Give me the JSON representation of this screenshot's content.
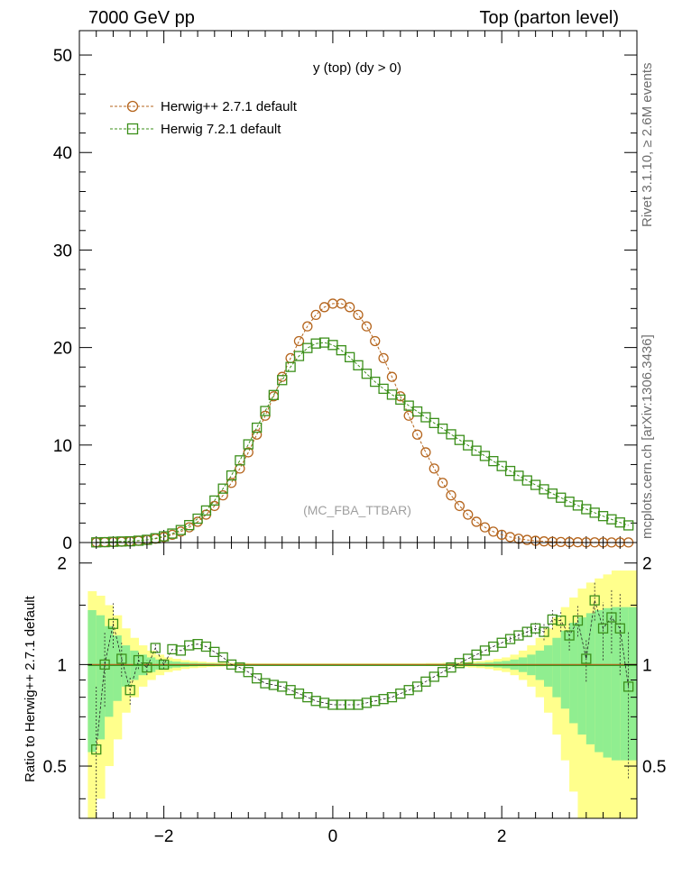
{
  "header": {
    "left": "7000 GeV pp",
    "right": "Top (parton level)"
  },
  "side_labels": {
    "rivet": "Rivet 3.1.10, ≥ 2.6M events",
    "mcplots": "mcplots.cern.ch [arXiv:1306.3436]"
  },
  "colors": {
    "herwigpp": "#b5651d",
    "herwig7": "#3b8f1a",
    "band_inner": "#90ee90",
    "band_outer": "#ffff8c"
  },
  "chart_data": [
    {
      "type": "line",
      "title": "y (top) (dy > 0)",
      "watermark": "(MC_FBA_TTBAR)",
      "xlim": [
        -3.0,
        3.6
      ],
      "ylim": [
        0,
        52.5
      ],
      "yticks": [
        0,
        10,
        20,
        30,
        40,
        50
      ],
      "ytick_labels": [
        "0",
        "10",
        "20",
        "30",
        "40",
        "50"
      ],
      "legend_position": "top-left",
      "x": [
        -2.8,
        -2.7,
        -2.6,
        -2.5,
        -2.4,
        -2.3,
        -2.2,
        -2.1,
        -2.0,
        -1.9,
        -1.8,
        -1.7,
        -1.6,
        -1.5,
        -1.4,
        -1.3,
        -1.2,
        -1.1,
        -1.0,
        -0.9,
        -0.8,
        -0.7,
        -0.6,
        -0.5,
        -0.4,
        -0.3,
        -0.2,
        -0.1,
        0.0,
        0.1,
        0.2,
        0.3,
        0.4,
        0.5,
        0.6,
        0.7,
        0.8,
        0.9,
        1.0,
        1.1,
        1.2,
        1.3,
        1.4,
        1.5,
        1.6,
        1.7,
        1.8,
        1.9,
        2.0,
        2.1,
        2.2,
        2.3,
        2.4,
        2.5,
        2.6,
        2.7,
        2.8,
        2.9,
        3.0,
        3.1,
        3.2,
        3.3,
        3.4,
        3.5
      ],
      "series": [
        {
          "name": "Herwig++ 2.7.1 default",
          "marker": "circle",
          "values": [
            0.03,
            0.04,
            0.06,
            0.08,
            0.12,
            0.18,
            0.27,
            0.39,
            0.56,
            0.8,
            1.12,
            1.56,
            2.13,
            2.86,
            3.75,
            4.84,
            6.12,
            7.59,
            9.25,
            11.07,
            13.01,
            15.0,
            16.99,
            18.91,
            20.66,
            22.17,
            23.35,
            24.14,
            24.5,
            24.5,
            24.14,
            23.35,
            22.17,
            20.66,
            18.91,
            16.99,
            15.0,
            13.01,
            11.07,
            9.25,
            7.59,
            6.12,
            4.84,
            3.75,
            2.86,
            2.13,
            1.56,
            1.12,
            0.8,
            0.56,
            0.39,
            0.27,
            0.18,
            0.12,
            0.08,
            0.06,
            0.04,
            0.03,
            0.02,
            0.02,
            0.01,
            0.01,
            0.01,
            0.01
          ]
        },
        {
          "name": "Herwig 7.2.1 default",
          "marker": "square",
          "values": [
            0.02,
            0.04,
            0.08,
            0.11,
            0.13,
            0.19,
            0.28,
            0.44,
            0.64,
            0.92,
            1.28,
            1.79,
            2.45,
            3.29,
            4.31,
            5.53,
            6.88,
            8.43,
            10.07,
            11.78,
            13.49,
            15.13,
            16.66,
            18.01,
            19.13,
            19.95,
            20.41,
            20.51,
            20.26,
            19.72,
            19.01,
            18.18,
            17.31,
            16.49,
            15.77,
            15.17,
            14.66,
            14.04,
            13.44,
            12.85,
            12.26,
            11.68,
            11.1,
            10.52,
            9.97,
            9.42,
            8.88,
            8.35,
            7.84,
            7.34,
            6.85,
            6.37,
            5.91,
            5.46,
            5.02,
            4.6,
            4.19,
            3.8,
            3.42,
            3.06,
            2.71,
            2.38,
            2.06,
            1.76
          ]
        }
      ]
    },
    {
      "type": "line",
      "ylabel": "Ratio to Herwig++ 2.7.1 default",
      "xlim": [
        -3.0,
        3.6
      ],
      "ylim": [
        0.35,
        2.3
      ],
      "xticks": [
        -2,
        0,
        2
      ],
      "xtick_labels": [
        "−2",
        "0",
        "2"
      ],
      "yticks": [
        0.5,
        1,
        2
      ],
      "ytick_labels": [
        "0.5",
        "1",
        "2"
      ],
      "reference": 1.0,
      "band_edges": [
        -2.9,
        -2.8,
        -2.7,
        -2.6,
        -2.5,
        -2.4,
        -2.3,
        -2.2,
        -2.1,
        -2.0,
        -1.9,
        -1.8,
        -1.7,
        -1.6,
        -1.5,
        -1.4,
        -1.3,
        -1.2,
        -1.1,
        -1.0,
        -0.9,
        -0.8,
        -0.7,
        -0.6,
        -0.5,
        -0.4,
        -0.3,
        -0.2,
        -0.1,
        0.0,
        0.1,
        0.2,
        0.3,
        0.4,
        0.5,
        0.6,
        0.7,
        0.8,
        0.9,
        1.0,
        1.1,
        1.2,
        1.3,
        1.4,
        1.5,
        1.6,
        1.7,
        1.8,
        1.9,
        2.0,
        2.1,
        2.2,
        2.3,
        2.4,
        2.5,
        2.6,
        2.7,
        2.8,
        2.9,
        3.0,
        3.1,
        3.2,
        3.3,
        3.4,
        3.5,
        3.6
      ],
      "band_inner": [
        0.45,
        0.4,
        0.3,
        0.22,
        0.14,
        0.1,
        0.07,
        0.05,
        0.035,
        0.025,
        0.02,
        0.015,
        0.012,
        0.01,
        0.008,
        0.007,
        0.006,
        0.005,
        0.005,
        0.004,
        0.004,
        0.004,
        0.004,
        0.004,
        0.004,
        0.004,
        0.004,
        0.004,
        0.004,
        0.004,
        0.004,
        0.004,
        0.004,
        0.004,
        0.004,
        0.004,
        0.004,
        0.004,
        0.004,
        0.004,
        0.005,
        0.005,
        0.006,
        0.007,
        0.008,
        0.01,
        0.012,
        0.015,
        0.02,
        0.025,
        0.035,
        0.05,
        0.07,
        0.1,
        0.14,
        0.2,
        0.26,
        0.33,
        0.38,
        0.42,
        0.45,
        0.47,
        0.48,
        0.48,
        0.48
      ],
      "band_outer": [
        0.65,
        0.6,
        0.5,
        0.4,
        0.28,
        0.2,
        0.14,
        0.1,
        0.07,
        0.05,
        0.04,
        0.03,
        0.024,
        0.02,
        0.016,
        0.014,
        0.012,
        0.01,
        0.01,
        0.008,
        0.008,
        0.008,
        0.008,
        0.008,
        0.008,
        0.008,
        0.008,
        0.008,
        0.008,
        0.008,
        0.008,
        0.008,
        0.008,
        0.008,
        0.008,
        0.008,
        0.008,
        0.008,
        0.008,
        0.008,
        0.01,
        0.01,
        0.012,
        0.014,
        0.016,
        0.02,
        0.024,
        0.03,
        0.04,
        0.05,
        0.07,
        0.1,
        0.14,
        0.2,
        0.28,
        0.38,
        0.48,
        0.58,
        0.68,
        0.75,
        0.8,
        0.85,
        0.9,
        0.9,
        0.9
      ],
      "series": [
        {
          "name": "Herwig 7.2.1 default",
          "marker": "square",
          "values": [
            0.56,
            1.0,
            1.32,
            1.04,
            0.84,
            1.03,
            0.98,
            1.12,
            1.0,
            1.11,
            1.1,
            1.14,
            1.15,
            1.13,
            1.09,
            1.05,
            1.0,
            0.98,
            0.95,
            0.91,
            0.88,
            0.87,
            0.86,
            0.84,
            0.82,
            0.8,
            0.78,
            0.77,
            0.76,
            0.76,
            0.76,
            0.76,
            0.77,
            0.78,
            0.79,
            0.8,
            0.82,
            0.84,
            0.86,
            0.89,
            0.92,
            0.95,
            0.98,
            1.01,
            1.04,
            1.07,
            1.1,
            1.13,
            1.16,
            1.19,
            1.22,
            1.25,
            1.28,
            1.25,
            1.36,
            1.35,
            1.22,
            1.35,
            1.04,
            1.55,
            1.28,
            1.38,
            1.28,
            0.86
          ],
          "yerr": [
            0.3,
            0.25,
            0.2,
            0.12,
            0.08,
            0.06,
            0.05,
            0.04,
            0.03,
            0.02,
            0.02,
            0.015,
            0.012,
            0.01,
            0.01,
            0.008,
            0.008,
            0.006,
            0.006,
            0.005,
            0.005,
            0.005,
            0.005,
            0.005,
            0.005,
            0.005,
            0.005,
            0.005,
            0.005,
            0.005,
            0.005,
            0.005,
            0.005,
            0.005,
            0.005,
            0.005,
            0.005,
            0.005,
            0.005,
            0.006,
            0.006,
            0.007,
            0.008,
            0.009,
            0.01,
            0.012,
            0.015,
            0.018,
            0.02,
            0.025,
            0.03,
            0.04,
            0.05,
            0.07,
            0.09,
            0.1,
            0.12,
            0.14,
            0.15,
            0.2,
            0.25,
            0.3,
            0.35,
            0.4
          ]
        }
      ]
    }
  ]
}
